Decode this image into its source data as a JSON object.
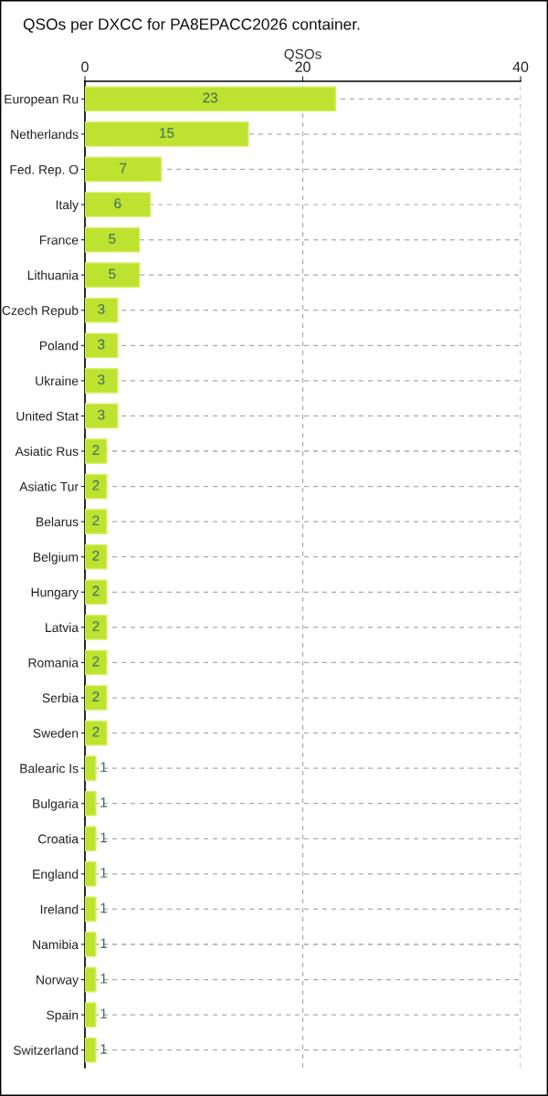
{
  "chart_data": {
    "type": "bar",
    "orientation": "horizontal",
    "title": "QSOs per DXCC for PA8EPACC2026 container.",
    "xlabel": "QSOs",
    "categories": [
      "European Ru",
      "Netherlands",
      "Fed. Rep. O",
      "Italy",
      "France",
      "Lithuania",
      "Czech Repub",
      "Poland",
      "Ukraine",
      "United Stat",
      "Asiatic Rus",
      "Asiatic Tur",
      "Belarus",
      "Belgium",
      "Hungary",
      "Latvia",
      "Romania",
      "Serbia",
      "Sweden",
      "Balearic Is",
      "Bulgaria",
      "Croatia",
      "England",
      "Ireland",
      "Namibia",
      "Norway",
      "Spain",
      "Switzerland"
    ],
    "values": [
      23,
      15,
      7,
      6,
      5,
      5,
      3,
      3,
      3,
      3,
      2,
      2,
      2,
      2,
      2,
      2,
      2,
      2,
      2,
      1,
      1,
      1,
      1,
      1,
      1,
      1,
      1,
      1
    ],
    "color": "#bde22f",
    "xlim": [
      0,
      40
    ],
    "xticks": [
      0,
      20,
      40
    ],
    "grid": true,
    "data_labels": true
  }
}
